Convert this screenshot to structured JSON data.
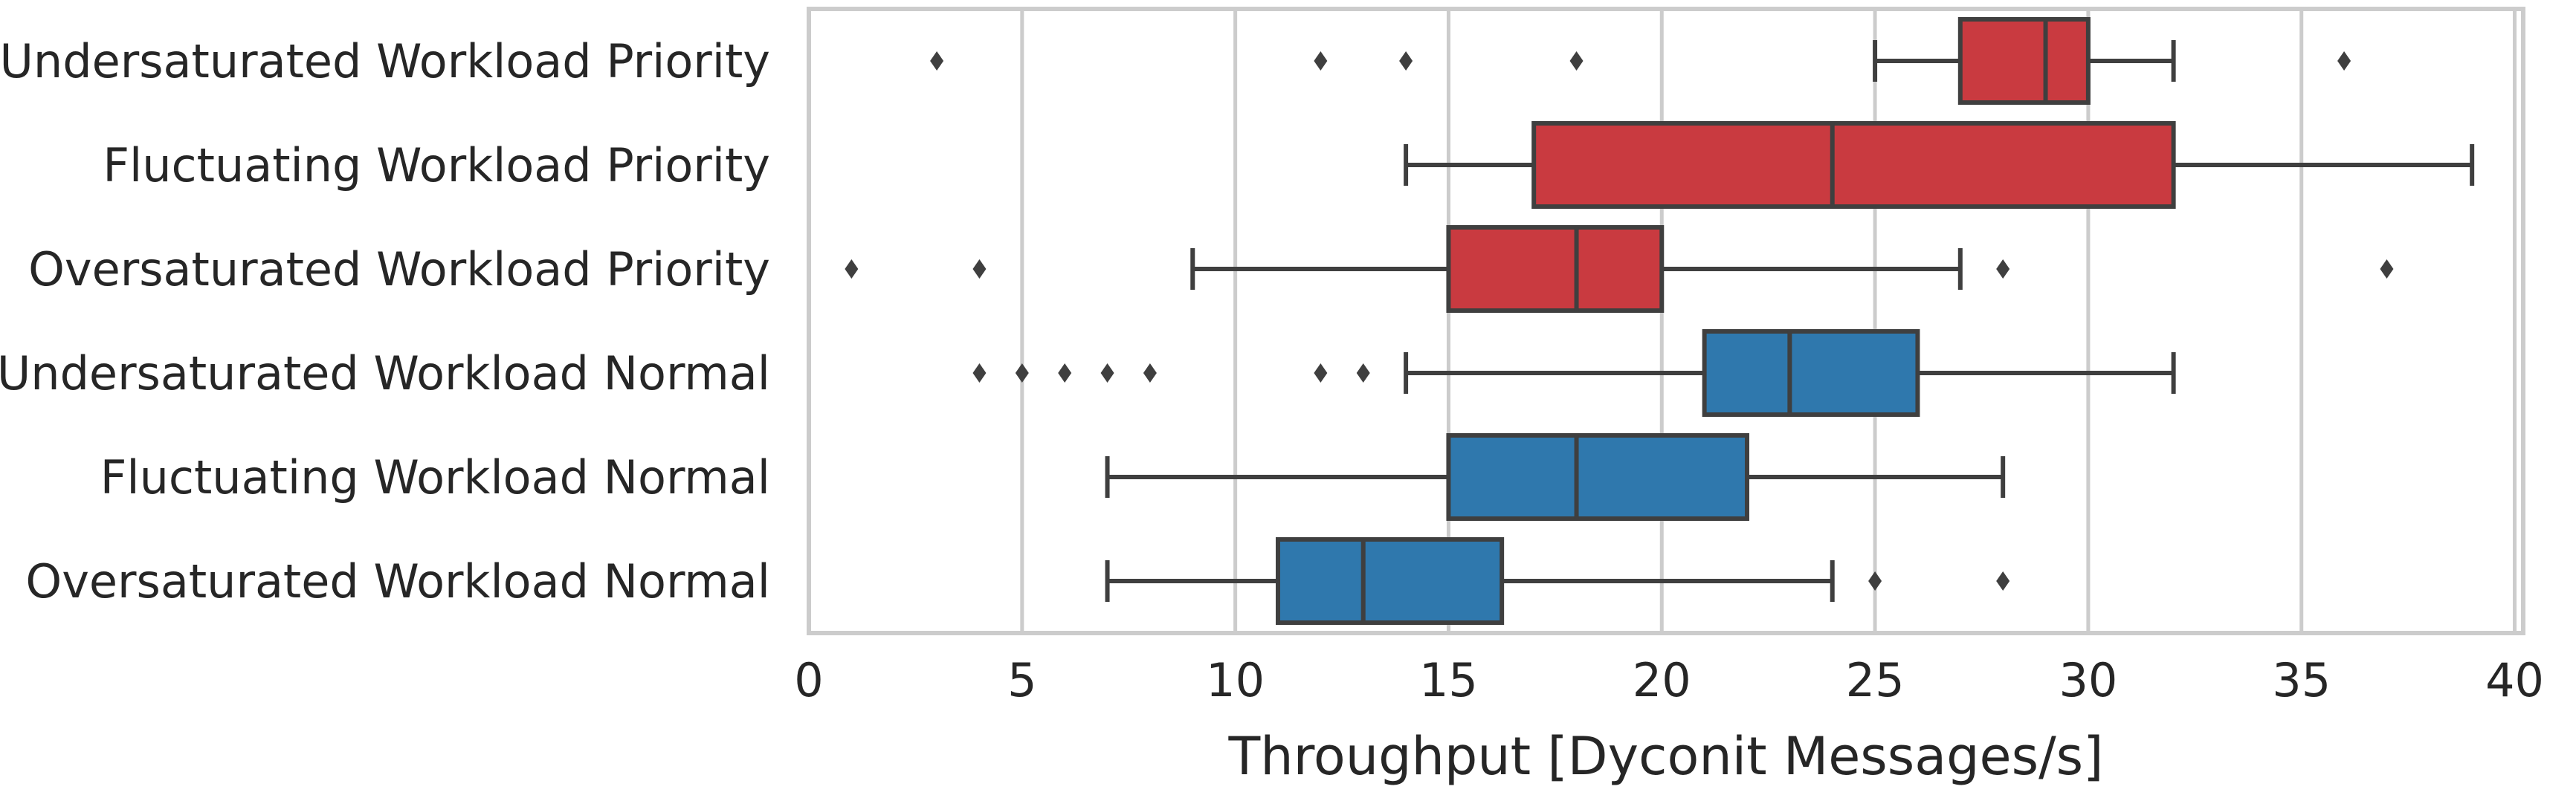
{
  "chart_data": {
    "type": "box",
    "orientation": "horizontal",
    "title": "",
    "xlabel": "Throughput [Dyconit Messages/s]",
    "ylabel": "",
    "xlim": [
      0,
      40.2
    ],
    "xticks": [
      0,
      5,
      10,
      15,
      20,
      25,
      30,
      35,
      40
    ],
    "grid": "vertical",
    "colors": {
      "priority": "#c93a40",
      "normal": "#2f78ad",
      "line": "#3f3f3f",
      "grid": "#cccccc",
      "frame": "#cccccc"
    },
    "categories": [
      {
        "label": "Undersaturated Workload Priority",
        "group": "priority",
        "whislo": 25,
        "q1": 27,
        "med": 29,
        "q3": 30,
        "whishi": 32,
        "fliers": [
          3,
          12,
          14,
          18,
          36
        ]
      },
      {
        "label": "Fluctuating Workload Priority",
        "group": "priority",
        "whislo": 14,
        "q1": 17,
        "med": 24,
        "q3": 32,
        "whishi": 39,
        "fliers": []
      },
      {
        "label": "Oversaturated Workload Priority",
        "group": "priority",
        "whislo": 9,
        "q1": 15,
        "med": 18,
        "q3": 20,
        "whishi": 27,
        "fliers": [
          1,
          4,
          28,
          37
        ]
      },
      {
        "label": "Undersaturated Workload Normal",
        "group": "normal",
        "whislo": 14,
        "q1": 21,
        "med": 23,
        "q3": 26,
        "whishi": 32,
        "fliers": [
          4,
          5,
          6,
          7,
          8,
          12,
          13
        ]
      },
      {
        "label": "Fluctuating Workload Normal",
        "group": "normal",
        "whislo": 7,
        "q1": 15,
        "med": 18,
        "q3": 22,
        "whishi": 28,
        "fliers": []
      },
      {
        "label": "Oversaturated Workload Normal",
        "group": "normal",
        "whislo": 7,
        "q1": 11,
        "med": 13,
        "q3": 16.25,
        "whishi": 24,
        "fliers": [
          25,
          28
        ]
      }
    ]
  }
}
